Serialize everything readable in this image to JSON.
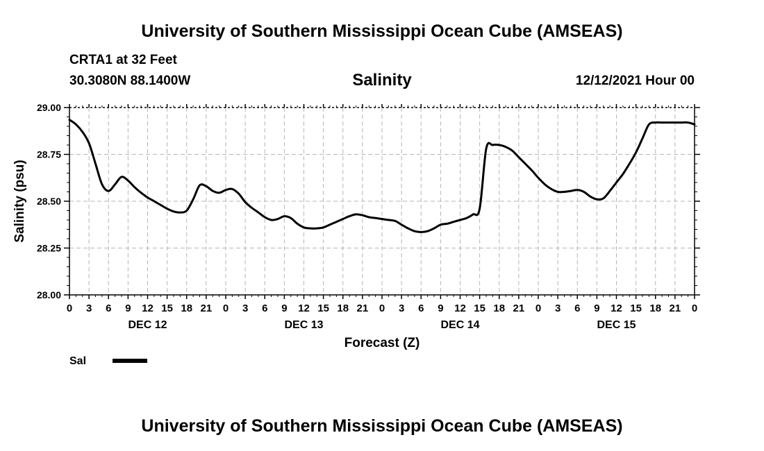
{
  "header": {
    "title": "University of Southern Mississippi Ocean Cube (AMSEAS)",
    "station": "CRTA1 at 32 Feet",
    "location": "30.3080N  88.1400W",
    "chart_title": "Salinity",
    "datetime": "12/12/2021 Hour 00"
  },
  "footer": {
    "title": "University of Southern Mississippi Ocean Cube (AMSEAS)"
  },
  "legend": {
    "label": "Sal"
  },
  "chart_data": {
    "type": "line",
    "title": "Salinity",
    "xlabel": "Forecast (Z)",
    "ylabel": "Salinity (psu)",
    "ylim": [
      28.0,
      29.0
    ],
    "xlim": [
      0,
      96
    ],
    "yticks": [
      "28.00",
      "28.25",
      "28.50",
      "28.75",
      "29.00"
    ],
    "xtick_labels": [
      "0",
      "3",
      "6",
      "9",
      "12",
      "15",
      "18",
      "21",
      "0",
      "3",
      "6",
      "9",
      "12",
      "15",
      "18",
      "21",
      "0",
      "3",
      "6",
      "9",
      "12",
      "15",
      "18",
      "21",
      "0",
      "3",
      "6",
      "9",
      "12",
      "15",
      "18",
      "21",
      "0"
    ],
    "day_labels": [
      {
        "hour": 12,
        "label": "DEC 12"
      },
      {
        "hour": 36,
        "label": "DEC 13"
      },
      {
        "hour": 60,
        "label": "DEC 14"
      },
      {
        "hour": 84,
        "label": "DEC 15"
      }
    ],
    "grid": true,
    "legend_position": "bottom-left",
    "series": [
      {
        "name": "Sal",
        "x": [
          0,
          1,
          2,
          3,
          4,
          5,
          6,
          7,
          8,
          9,
          10,
          11,
          12,
          13,
          14,
          15,
          16,
          17,
          18,
          19,
          20,
          21,
          22,
          23,
          24,
          25,
          26,
          27,
          28,
          29,
          30,
          31,
          32,
          33,
          34,
          35,
          36,
          37,
          38,
          39,
          40,
          41,
          42,
          43,
          44,
          45,
          46,
          47,
          48,
          49,
          50,
          51,
          52,
          53,
          54,
          55,
          56,
          57,
          58,
          59,
          60,
          61,
          62,
          63,
          64,
          65,
          66,
          67,
          68,
          69,
          70,
          71,
          72,
          73,
          74,
          75,
          76,
          77,
          78,
          79,
          80,
          81,
          82,
          83,
          84,
          85,
          86,
          87,
          88,
          89,
          90,
          91,
          92,
          93,
          94,
          95,
          96
        ],
        "values": [
          28.935,
          28.91,
          28.87,
          28.81,
          28.7,
          28.59,
          28.555,
          28.59,
          28.63,
          28.61,
          28.575,
          28.545,
          28.52,
          28.5,
          28.48,
          28.46,
          28.445,
          28.44,
          28.45,
          28.51,
          28.585,
          28.58,
          28.555,
          28.545,
          28.56,
          28.565,
          28.54,
          28.495,
          28.465,
          28.44,
          28.415,
          28.4,
          28.405,
          28.42,
          28.41,
          28.38,
          28.36,
          28.355,
          28.355,
          28.36,
          28.375,
          28.39,
          28.405,
          28.42,
          28.43,
          28.425,
          28.415,
          28.41,
          28.405,
          28.4,
          28.395,
          28.375,
          28.355,
          28.34,
          28.335,
          28.34,
          28.355,
          28.375,
          28.38,
          28.39,
          28.4,
          28.41,
          28.43,
          28.46,
          28.78,
          28.8,
          28.8,
          28.79,
          28.77,
          28.735,
          28.7,
          28.665,
          28.625,
          28.59,
          28.565,
          28.55,
          28.55,
          28.555,
          28.56,
          28.55,
          28.525,
          28.51,
          28.515,
          28.555,
          28.6,
          28.645,
          28.7,
          28.76,
          28.835,
          28.91,
          28.92,
          28.92,
          28.92,
          28.92,
          28.92,
          28.92,
          28.91
        ]
      }
    ]
  }
}
